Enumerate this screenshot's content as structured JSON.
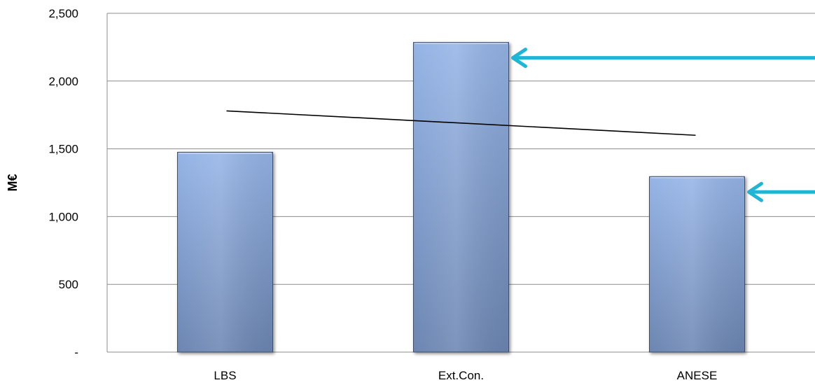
{
  "chart_data": {
    "type": "bar",
    "categories": [
      "LBS",
      "Ext.Con.",
      "ANESE"
    ],
    "values": [
      1475,
      2285,
      1295
    ],
    "title": "",
    "xlabel": "",
    "ylabel": "M€",
    "ylim": [
      0,
      2500
    ],
    "yticks": [
      0,
      500,
      1000,
      1500,
      2000,
      2500
    ],
    "ytick_labels": [
      "-",
      "500",
      "1,000",
      "1,500",
      "2,000",
      "2,500"
    ],
    "grid": true,
    "legend": "none",
    "trend_line": {
      "start_value": 1780,
      "end_value": 1600
    },
    "annotations": [
      {
        "type": "arrow",
        "target": "Ext.Con.",
        "color": "#1FB5D7"
      },
      {
        "type": "arrow",
        "target": "ANESE",
        "color": "#1FB5D7"
      }
    ],
    "colors": {
      "bar_top": "#95B4E6",
      "bar_bottom": "#6C86B2",
      "bar_edge": "#3E4E6C",
      "grid": "#8C8C8C",
      "arrow": "#1FB5D7",
      "trend": "#000000"
    }
  }
}
